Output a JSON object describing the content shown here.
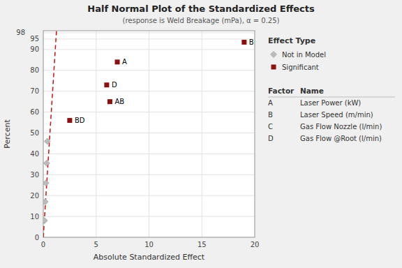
{
  "chart_data": {
    "type": "scatter",
    "title": "Half Normal Plot of the Standardized Effects",
    "subtitle": "(response is Weld Breakage (mPa), α = 0.25)",
    "x_label": "Absolute Standardized Effect",
    "y_label": "Percent",
    "xlim": [
      0,
      20
    ],
    "ylim": [
      0,
      99
    ],
    "xticks": [
      0,
      5,
      10,
      15,
      20
    ],
    "yticks": [
      0,
      10,
      20,
      30,
      40,
      50,
      60,
      70,
      80,
      90,
      95,
      98
    ],
    "grid": true,
    "legend": "right",
    "legend_title": "Effect Type",
    "series": [
      {
        "name": "Not in Model",
        "type": "scatter",
        "marker": "diamond",
        "color": "#BBBBBB",
        "x": [
          0.12,
          0.18,
          0.25,
          0.32,
          0.38
        ],
        "values": [
          8.0,
          17.0,
          26.0,
          35.5,
          46.0
        ]
      },
      {
        "name": "Significant",
        "type": "scatter",
        "marker": "square",
        "color": "#8B1010",
        "x": [
          19.0,
          7.0,
          6.0,
          6.3,
          2.5
        ],
        "values": [
          93.5,
          84.0,
          73.0,
          65.0,
          56.0
        ],
        "labels": [
          "B",
          "A",
          "D",
          "AB",
          "BD"
        ]
      },
      {
        "type": "line",
        "line_style": "dashed",
        "color": "#CC1010",
        "x": [
          0.0,
          1.25
        ],
        "values": [
          0.0,
          99.0
        ]
      }
    ],
    "table": {
      "columns": [
        "Factor",
        "Name"
      ],
      "rows": [
        [
          "A",
          "Laser Power (kW)"
        ],
        [
          "B",
          "Laser Speed (m/min)"
        ],
        [
          "C",
          "Gas Flow Nozzle (l/min)"
        ],
        [
          "D",
          "Gas Flow @Root (l/min)"
        ]
      ]
    }
  }
}
